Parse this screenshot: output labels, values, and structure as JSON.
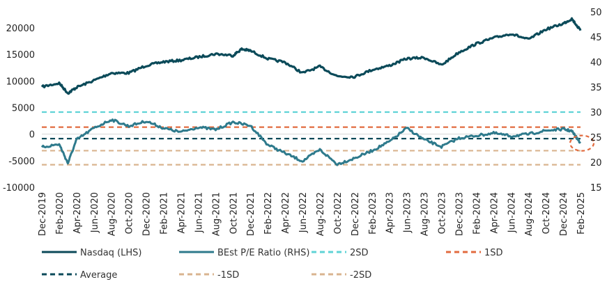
{
  "chart_data": {
    "type": "line",
    "x_ticks": [
      "Dec-2019",
      "Feb-2020",
      "Apr-2020",
      "Jun-2020",
      "Aug-2020",
      "Oct-2020",
      "Dec-2020",
      "Feb-2021",
      "Apr-2021",
      "Jun-2021",
      "Aug-2021",
      "Oct-2021",
      "Dec-2021",
      "Feb-2022",
      "Apr-2022",
      "Jun-2022",
      "Aug-2022",
      "Oct-2022",
      "Dec-2022",
      "Feb-2023",
      "Apr-2023",
      "Jun-2023",
      "Aug-2023",
      "Oct-2023",
      "Dec-2023",
      "Feb-2024",
      "Apr-2024",
      "Jun-2024",
      "Aug-2024",
      "Oct-2024",
      "Dec-2024",
      "Feb-2025"
    ],
    "left_axis": {
      "min": -10000,
      "max": 20000,
      "ticks": [
        -10000,
        -5000,
        0,
        5000,
        10000,
        15000,
        20000
      ]
    },
    "right_axis": {
      "min": 15,
      "max": 50,
      "ticks": [
        15,
        20,
        25,
        30,
        35,
        40,
        45,
        50
      ]
    },
    "grid": false,
    "legend_position": "bottom",
    "series": [
      {
        "name": "Nasdaq (LHS)",
        "axis": "left",
        "color": "#0b4a59",
        "style": "solid",
        "x": [
          "Dec-2019",
          "Feb-2020",
          "Mar-2020",
          "Apr-2020",
          "Jun-2020",
          "Aug-2020",
          "Oct-2020",
          "Dec-2020",
          "Feb-2021",
          "Apr-2021",
          "Jun-2021",
          "Aug-2021",
          "Oct-2021",
          "Nov-2021",
          "Dec-2021",
          "Feb-2022",
          "Apr-2022",
          "Jun-2022",
          "Aug-2022",
          "Oct-2022",
          "Dec-2022",
          "Feb-2023",
          "Apr-2023",
          "Jun-2023",
          "Aug-2023",
          "Oct-2023",
          "Dec-2023",
          "Feb-2024",
          "Apr-2024",
          "Jun-2024",
          "Aug-2024",
          "Oct-2024",
          "Dec-2024",
          "Jan-2025",
          "Feb-2025"
        ],
        "values": [
          8900,
          9600,
          7700,
          8800,
          10100,
          11500,
          11500,
          12900,
          13600,
          13900,
          14500,
          15100,
          14800,
          16000,
          15700,
          14200,
          13500,
          11500,
          12700,
          10900,
          10800,
          12100,
          12900,
          14200,
          14400,
          13000,
          15400,
          17000,
          18100,
          18900,
          17800,
          19700,
          20800,
          21700,
          19500
        ]
      },
      {
        "name": "BEst P/E Ratio (RHS)",
        "axis": "right",
        "color": "#2e7a8c",
        "style": "solid",
        "x": [
          "Dec-2019",
          "Feb-2020",
          "Mar-2020",
          "Apr-2020",
          "Jun-2020",
          "Aug-2020",
          "Oct-2020",
          "Dec-2020",
          "Feb-2021",
          "Apr-2021",
          "Jun-2021",
          "Aug-2021",
          "Oct-2021",
          "Dec-2021",
          "Feb-2022",
          "Apr-2022",
          "Jun-2022",
          "Aug-2022",
          "Oct-2022",
          "Dec-2022",
          "Feb-2023",
          "Apr-2023",
          "Jun-2023",
          "Aug-2023",
          "Oct-2023",
          "Dec-2023",
          "Feb-2024",
          "Apr-2024",
          "Jun-2024",
          "Aug-2024",
          "Oct-2024",
          "Dec-2024",
          "Jan-2025",
          "Feb-2025"
        ],
        "values": [
          23.0,
          23.6,
          19.8,
          24.5,
          26.8,
          28.5,
          27.2,
          28.2,
          26.8,
          26.0,
          27.0,
          26.5,
          28.0,
          27.3,
          23.5,
          21.8,
          20.2,
          22.5,
          19.6,
          20.8,
          22.3,
          24.1,
          26.8,
          24.5,
          23.1,
          24.8,
          25.3,
          25.8,
          25.2,
          25.6,
          26.3,
          26.6,
          26.2,
          23.8
        ]
      },
      {
        "name": "2SD",
        "axis": "right",
        "color": "#5fd3d6",
        "style": "dashed",
        "value": 30.0
      },
      {
        "name": "1SD",
        "axis": "right",
        "color": "#e26b3f",
        "style": "dashed",
        "value": 27.0
      },
      {
        "name": "Average",
        "axis": "right",
        "color": "#0b4a59",
        "style": "dashed",
        "value": 24.7
      },
      {
        "name": "-1SD",
        "axis": "right",
        "color": "#d9b48f",
        "style": "dashed",
        "value": 22.3
      },
      {
        "name": "-2SD",
        "axis": "right",
        "color": "#d9b48f",
        "style": "dashed",
        "value": 19.5
      }
    ],
    "annotations": [
      {
        "type": "dashed-circle",
        "color": "#e26b3f",
        "x": "Feb-2025",
        "y": 23.8,
        "axis": "right"
      }
    ]
  }
}
